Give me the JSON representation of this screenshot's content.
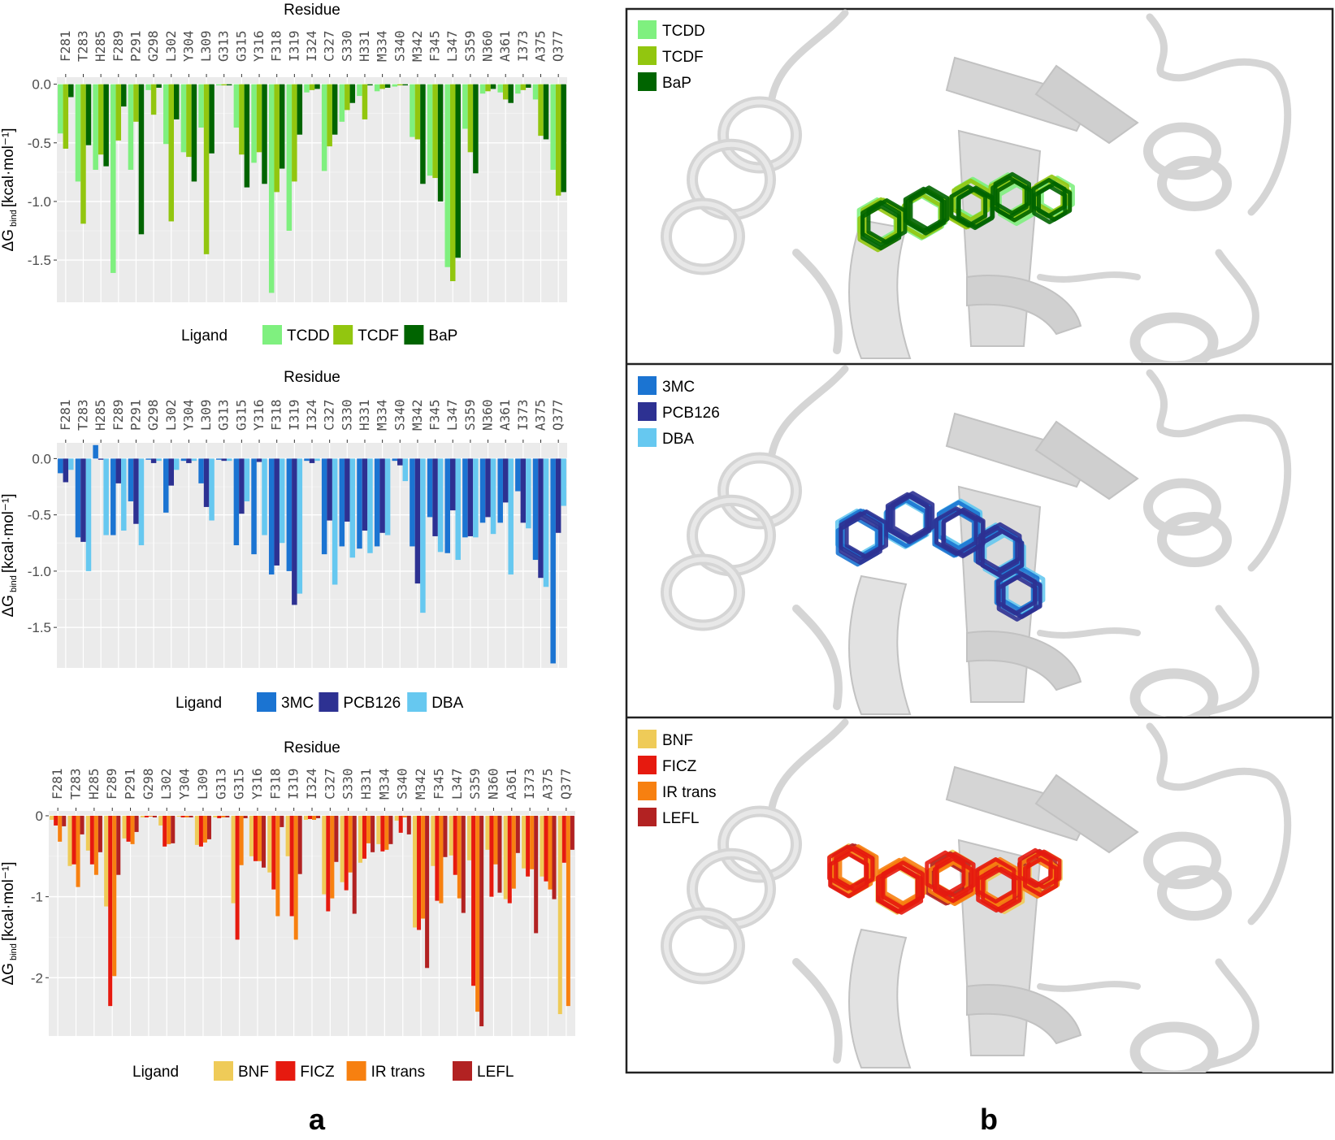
{
  "residues": [
    "F281",
    "T283",
    "H285",
    "F289",
    "P291",
    "G298",
    "L302",
    "Y304",
    "L309",
    "G313",
    "G315",
    "Y316",
    "F318",
    "I319",
    "I324",
    "C327",
    "S330",
    "H331",
    "M334",
    "S340",
    "M342",
    "F345",
    "L347",
    "S359",
    "N360",
    "A361",
    "I373",
    "A375",
    "Q377"
  ],
  "panel_labels": {
    "a": "a",
    "b": "b"
  },
  "chart_data": [
    {
      "type": "bar",
      "title": "Residue",
      "ylabel_main": "ΔG",
      "ylabel_sub": "bind",
      "ylabel_unit": "[kcal·mol⁻¹]",
      "ylim": [
        -1.86,
        0.06
      ],
      "yticks": [
        0,
        -0.5,
        -1.0,
        -1.5
      ],
      "ytick_labels": [
        "0.0",
        "-0.5",
        "-1.0",
        "-1.5"
      ],
      "legend_title": "Ligand",
      "series": [
        {
          "name": "TCDD",
          "color": "#7FF07F",
          "values": [
            -0.42,
            -0.83,
            -0.73,
            -1.61,
            -0.73,
            -0.05,
            -0.51,
            -0.58,
            -0.37,
            -0.01,
            -0.37,
            -0.67,
            -1.78,
            -1.25,
            -0.07,
            -0.74,
            -0.32,
            -0.1,
            -0.06,
            -0.02,
            -0.45,
            -0.78,
            -1.56,
            -0.38,
            -0.08,
            -0.07,
            -0.08,
            -0.13,
            -0.73
          ]
        },
        {
          "name": "TCDF",
          "color": "#92C60F",
          "values": [
            -0.55,
            -1.19,
            -0.6,
            -0.48,
            -0.32,
            -0.26,
            -1.17,
            -0.62,
            -1.45,
            -0.01,
            -0.6,
            -0.58,
            -0.92,
            -0.83,
            -0.05,
            -0.53,
            -0.22,
            -0.3,
            -0.04,
            -0.01,
            -0.47,
            -0.8,
            -1.68,
            -0.58,
            -0.06,
            -0.13,
            -0.05,
            -0.44,
            -0.95
          ]
        },
        {
          "name": "BaP",
          "color": "#006400",
          "values": [
            -0.11,
            -0.52,
            -0.7,
            -0.19,
            -1.28,
            -0.03,
            -0.3,
            -0.83,
            -0.59,
            -0.01,
            -0.88,
            -0.85,
            -0.72,
            -0.43,
            -0.04,
            -0.43,
            -0.16,
            -0.01,
            -0.03,
            -0.01,
            -0.85,
            -1.0,
            -1.48,
            -0.76,
            -0.04,
            -0.16,
            -0.03,
            -0.47,
            -0.92
          ]
        }
      ]
    },
    {
      "type": "bar",
      "title": "Residue",
      "ylabel_main": "ΔG",
      "ylabel_sub": "bind",
      "ylabel_unit": "[kcal·mol⁻¹]",
      "ylim": [
        -1.86,
        0.14
      ],
      "yticks": [
        0,
        -0.5,
        -1.0,
        -1.5
      ],
      "ytick_labels": [
        "0.0",
        "-0.5",
        "-1.0",
        "-1.5"
      ],
      "legend_title": "Ligand",
      "series": [
        {
          "name": "3MC",
          "color": "#1B74D2",
          "values": [
            -0.13,
            -0.7,
            0.12,
            -0.68,
            -0.38,
            -0.01,
            -0.48,
            -0.02,
            -0.22,
            -0.01,
            -0.77,
            -0.85,
            -1.03,
            -1.0,
            -0.02,
            -0.85,
            -0.78,
            -0.8,
            -0.78,
            -0.02,
            -0.78,
            -0.52,
            -0.84,
            -0.7,
            -0.57,
            -0.57,
            -0.29,
            -0.9,
            -1.82
          ]
        },
        {
          "name": "PCB126",
          "color": "#2D3192",
          "values": [
            -0.21,
            -0.74,
            -0.01,
            -0.22,
            -0.58,
            -0.04,
            -0.24,
            -0.04,
            -0.43,
            -0.02,
            -0.49,
            -0.03,
            -0.95,
            -1.3,
            -0.04,
            -0.55,
            -0.56,
            -0.64,
            -0.66,
            -0.06,
            -1.11,
            -0.69,
            -0.46,
            -0.69,
            -0.52,
            -0.39,
            -0.57,
            -1.06,
            -0.66
          ]
        },
        {
          "name": "DBA",
          "color": "#66C8F0",
          "values": [
            -0.1,
            -1.0,
            -0.68,
            -0.64,
            -0.77,
            -0.02,
            -0.1,
            -0.02,
            -0.55,
            -0.02,
            -0.38,
            -0.68,
            -0.75,
            -1.2,
            -0.02,
            -1.12,
            -0.88,
            -0.84,
            -0.68,
            -0.2,
            -1.37,
            -0.83,
            -0.9,
            -0.7,
            -0.67,
            -1.03,
            -0.62,
            -1.14,
            -0.42
          ]
        }
      ]
    },
    {
      "type": "bar",
      "title": "Residue",
      "ylabel_main": "ΔG",
      "ylabel_sub": "bind",
      "ylabel_unit": "[kcal·mol⁻¹]",
      "ylim": [
        -2.72,
        0.06
      ],
      "yticks": [
        0,
        -1,
        -2
      ],
      "ytick_labels": [
        "0",
        "-1",
        "-2"
      ],
      "legend_title": "Ligand",
      "series": [
        {
          "name": "BNF",
          "color": "#EFCB58",
          "values": [
            -0.05,
            -0.62,
            -0.43,
            -1.12,
            -0.28,
            -0.02,
            -0.12,
            -0.01,
            -0.36,
            -0.02,
            -1.08,
            -0.5,
            -0.7,
            -0.5,
            -0.05,
            -0.97,
            -0.82,
            -0.58,
            -0.35,
            -0.06,
            -1.38,
            -0.62,
            -0.49,
            -0.55,
            -0.42,
            -1.03,
            -0.65,
            -0.75,
            -2.45
          ]
        },
        {
          "name": "FICZ",
          "color": "#E61A0F",
          "values": [
            -0.12,
            -0.6,
            -0.6,
            -2.35,
            -0.32,
            -0.02,
            -0.38,
            -0.02,
            -0.38,
            -0.03,
            -1.53,
            -0.56,
            -0.91,
            -1.24,
            -0.04,
            -1.18,
            -0.92,
            -0.53,
            -0.44,
            -0.21,
            -1.41,
            -1.05,
            -0.73,
            -2.1,
            -1.0,
            -1.08,
            -0.75,
            -0.81,
            -0.58
          ]
        },
        {
          "name": "IR trans",
          "color": "#F78010",
          "values": [
            -0.32,
            -0.88,
            -0.73,
            -1.98,
            -0.35,
            -0.01,
            -0.35,
            -0.02,
            -0.33,
            -0.02,
            -0.61,
            -0.56,
            -1.24,
            -1.53,
            -0.05,
            -1.02,
            -0.7,
            -0.34,
            -0.42,
            -0.02,
            -1.27,
            -1.08,
            -1.02,
            -2.42,
            -0.6,
            -0.9,
            -0.66,
            -0.91,
            -2.35
          ]
        },
        {
          "name": "LEFL",
          "color": "#B22222",
          "values": [
            -0.13,
            -0.23,
            -0.45,
            -0.73,
            -0.2,
            -0.02,
            -0.34,
            -0.02,
            -0.29,
            -0.02,
            -0.03,
            -0.64,
            -0.14,
            -0.72,
            -0.03,
            -0.57,
            -1.21,
            -0.45,
            -0.35,
            -0.23,
            -1.88,
            -0.51,
            -1.2,
            -2.6,
            -0.95,
            -0.46,
            -1.45,
            -1.03,
            -0.42
          ]
        }
      ]
    }
  ],
  "structure_panels": [
    {
      "legend": [
        {
          "name": "TCDD",
          "color": "#7FF07F"
        },
        {
          "name": "TCDF",
          "color": "#92C60F"
        },
        {
          "name": "BaP",
          "color": "#006400"
        }
      ]
    },
    {
      "legend": [
        {
          "name": "3MC",
          "color": "#1B74D2"
        },
        {
          "name": "PCB126",
          "color": "#2D3192"
        },
        {
          "name": "DBA",
          "color": "#66C8F0"
        }
      ]
    },
    {
      "legend": [
        {
          "name": "BNF",
          "color": "#EFCB58"
        },
        {
          "name": "FICZ",
          "color": "#E61A0F"
        },
        {
          "name": "IR trans",
          "color": "#F78010"
        },
        {
          "name": "LEFL",
          "color": "#B22222"
        }
      ]
    }
  ]
}
